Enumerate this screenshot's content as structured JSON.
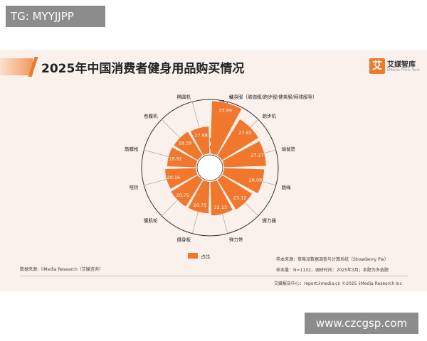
{
  "watermark_top": "TG: MYYJJPP",
  "watermark_bottom": "www.czcgsp.com",
  "logo": {
    "glyph": "艾",
    "name": "艾媒智库",
    "sub": "iiMedia Think Tank"
  },
  "source_left": "数据来源：iiMedia Research（艾媒咨询）",
  "sample_note": "样本来源：草莓派数据调查与计算系统（Strawberry Pie）",
  "sample_note2": "样本量：N=1132；调研时间：2025年3月；本题为多选题",
  "footer": "艾媒报告中心：report.iimedia.cn   ©2025 iiMedia Research Inc",
  "colors": {
    "bar": "#f0772c",
    "accent": "#ee7a2e",
    "grid": "#333333",
    "background": "#fbf1ec"
  },
  "chart_data": {
    "type": "bar",
    "subtype": "polar",
    "title": "2025年中国消费者健身用品购买情况",
    "unit_label": "%",
    "categories": [
      "健身服（瑜伽服/跑步服/健美服/网球服等）",
      "跑步机",
      "瑜伽垫",
      "跳绳",
      "握力器",
      "弹力带",
      "健身板",
      "腹肌轮",
      "哑铃",
      "筋膜枪",
      "卷腹机",
      "椭圆机"
    ],
    "values": [
      33.99,
      27.82,
      27.27,
      26.09,
      23.12,
      22.13,
      20.75,
      20.75,
      20.16,
      18.92,
      18.59,
      17.88
    ],
    "value_labels": [
      "33.99",
      "27.82",
      "27.27",
      "26.09",
      "23.12",
      "22.13",
      "20.75",
      "20.75",
      "20.16",
      "18.92",
      "18.59",
      "17.88"
    ],
    "radial_ticks": [
      "35",
      "30",
      "25",
      "20",
      "15",
      "10",
      "5"
    ],
    "rlim": [
      0,
      35
    ],
    "legend": {
      "label": "占比",
      "position": "bottom"
    },
    "grid": true
  }
}
